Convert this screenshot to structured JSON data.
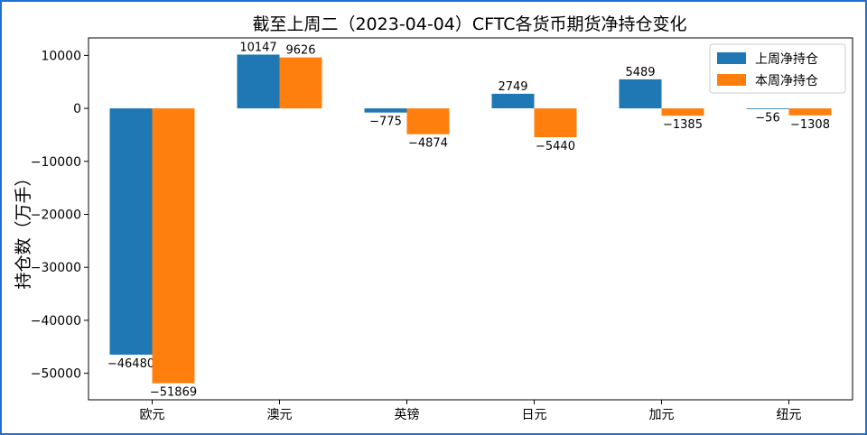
{
  "chart_data": {
    "type": "bar",
    "title": "截至上周二（2023-04-04）CFTC各货币期货净持仓变化",
    "xlabel": "",
    "ylabel": "持仓数（万手）",
    "categories": [
      "欧元",
      "澳元",
      "英镑",
      "日元",
      "加元",
      "纽元"
    ],
    "series": [
      {
        "name": "上周净持仓",
        "values": [
          -46480,
          10147,
          -775,
          2749,
          5489,
          -56
        ],
        "color": "#1f77b4"
      },
      {
        "name": "本周净持仓",
        "values": [
          -51869,
          9626,
          -4874,
          -5440,
          -1385,
          -1308
        ],
        "color": "#ff7f0e"
      }
    ],
    "yticks": [
      10000,
      0,
      -10000,
      -20000,
      -30000,
      -40000,
      -50000
    ],
    "ylim": [
      -55000,
      13300
    ],
    "grid": false,
    "legend_position": "top-right"
  }
}
